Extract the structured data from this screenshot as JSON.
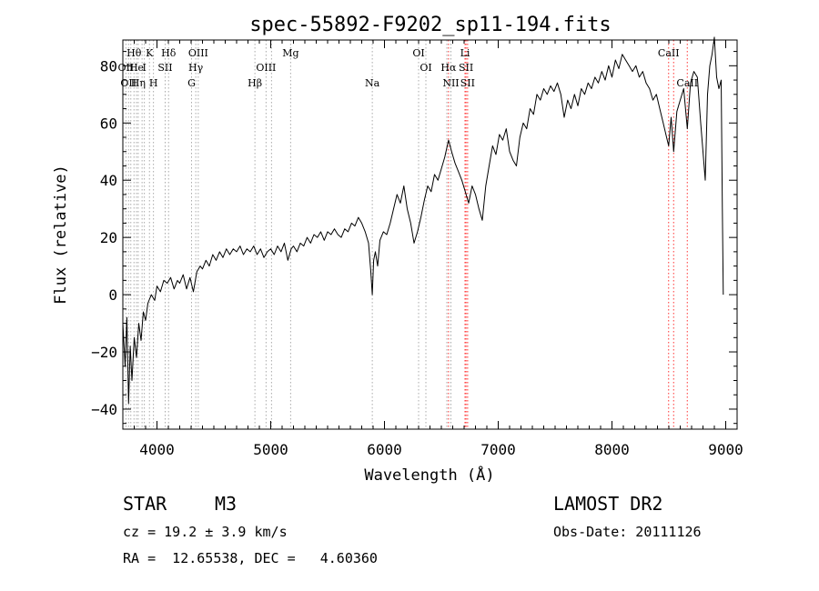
{
  "chart_data": {
    "type": "line",
    "title": "spec-55892-F9202_sp11-194.fits",
    "xlabel": "Wavelength (Å)",
    "ylabel": "Flux (relative)",
    "xlim": [
      3700,
      9100
    ],
    "ylim": [
      -47,
      89
    ],
    "x_ticks": [
      4000,
      5000,
      6000,
      7000,
      8000,
      9000
    ],
    "y_ticks": [
      -40,
      -20,
      0,
      20,
      40,
      60,
      80
    ],
    "series": [
      {
        "color": "#000000",
        "points": [
          [
            3700,
            -10
          ],
          [
            3720,
            -25
          ],
          [
            3735,
            -8
          ],
          [
            3750,
            -38
          ],
          [
            3765,
            -18
          ],
          [
            3780,
            -30
          ],
          [
            3800,
            -15
          ],
          [
            3820,
            -22
          ],
          [
            3840,
            -10
          ],
          [
            3860,
            -16
          ],
          [
            3880,
            -6
          ],
          [
            3900,
            -9
          ],
          [
            3920,
            -3
          ],
          [
            3950,
            0
          ],
          [
            3980,
            -2
          ],
          [
            4000,
            3
          ],
          [
            4030,
            1
          ],
          [
            4060,
            5
          ],
          [
            4090,
            4
          ],
          [
            4120,
            6
          ],
          [
            4150,
            2
          ],
          [
            4180,
            5
          ],
          [
            4200,
            4
          ],
          [
            4230,
            7
          ],
          [
            4260,
            2
          ],
          [
            4290,
            6
          ],
          [
            4320,
            1
          ],
          [
            4350,
            8
          ],
          [
            4380,
            10
          ],
          [
            4400,
            9
          ],
          [
            4430,
            12
          ],
          [
            4460,
            10
          ],
          [
            4490,
            14
          ],
          [
            4520,
            12
          ],
          [
            4550,
            15
          ],
          [
            4580,
            13
          ],
          [
            4610,
            16
          ],
          [
            4640,
            14
          ],
          [
            4670,
            16
          ],
          [
            4700,
            15
          ],
          [
            4730,
            17
          ],
          [
            4760,
            14
          ],
          [
            4790,
            16
          ],
          [
            4820,
            15
          ],
          [
            4850,
            17
          ],
          [
            4880,
            14
          ],
          [
            4910,
            16
          ],
          [
            4940,
            13
          ],
          [
            4970,
            15
          ],
          [
            5000,
            16
          ],
          [
            5030,
            14
          ],
          [
            5060,
            17
          ],
          [
            5090,
            15
          ],
          [
            5120,
            18
          ],
          [
            5150,
            12
          ],
          [
            5180,
            16
          ],
          [
            5200,
            17
          ],
          [
            5230,
            15
          ],
          [
            5260,
            18
          ],
          [
            5290,
            17
          ],
          [
            5320,
            20
          ],
          [
            5350,
            18
          ],
          [
            5380,
            21
          ],
          [
            5410,
            20
          ],
          [
            5440,
            22
          ],
          [
            5470,
            19
          ],
          [
            5500,
            22
          ],
          [
            5530,
            21
          ],
          [
            5560,
            23
          ],
          [
            5590,
            21
          ],
          [
            5620,
            20
          ],
          [
            5650,
            23
          ],
          [
            5680,
            22
          ],
          [
            5710,
            25
          ],
          [
            5740,
            24
          ],
          [
            5770,
            27
          ],
          [
            5800,
            25
          ],
          [
            5830,
            22
          ],
          [
            5860,
            18
          ],
          [
            5880,
            8
          ],
          [
            5893,
            0
          ],
          [
            5905,
            12
          ],
          [
            5920,
            15
          ],
          [
            5940,
            10
          ],
          [
            5960,
            19
          ],
          [
            5990,
            22
          ],
          [
            6020,
            21
          ],
          [
            6050,
            25
          ],
          [
            6080,
            30
          ],
          [
            6110,
            35
          ],
          [
            6140,
            32
          ],
          [
            6170,
            38
          ],
          [
            6200,
            30
          ],
          [
            6230,
            25
          ],
          [
            6260,
            18
          ],
          [
            6290,
            22
          ],
          [
            6320,
            27
          ],
          [
            6350,
            33
          ],
          [
            6380,
            38
          ],
          [
            6410,
            36
          ],
          [
            6440,
            42
          ],
          [
            6470,
            40
          ],
          [
            6500,
            44
          ],
          [
            6530,
            48
          ],
          [
            6563,
            54
          ],
          [
            6590,
            50
          ],
          [
            6620,
            46
          ],
          [
            6650,
            43
          ],
          [
            6680,
            40
          ],
          [
            6710,
            36
          ],
          [
            6740,
            32
          ],
          [
            6770,
            38
          ],
          [
            6800,
            35
          ],
          [
            6830,
            30
          ],
          [
            6860,
            26
          ],
          [
            6890,
            38
          ],
          [
            6920,
            45
          ],
          [
            6950,
            52
          ],
          [
            6980,
            49
          ],
          [
            7010,
            56
          ],
          [
            7040,
            54
          ],
          [
            7070,
            58
          ],
          [
            7100,
            50
          ],
          [
            7130,
            47
          ],
          [
            7160,
            45
          ],
          [
            7190,
            55
          ],
          [
            7220,
            60
          ],
          [
            7250,
            58
          ],
          [
            7280,
            65
          ],
          [
            7310,
            63
          ],
          [
            7340,
            70
          ],
          [
            7370,
            68
          ],
          [
            7400,
            72
          ],
          [
            7430,
            70
          ],
          [
            7460,
            73
          ],
          [
            7490,
            71
          ],
          [
            7520,
            74
          ],
          [
            7550,
            70
          ],
          [
            7580,
            62
          ],
          [
            7610,
            68
          ],
          [
            7640,
            65
          ],
          [
            7670,
            70
          ],
          [
            7700,
            66
          ],
          [
            7730,
            72
          ],
          [
            7760,
            70
          ],
          [
            7790,
            74
          ],
          [
            7820,
            72
          ],
          [
            7850,
            76
          ],
          [
            7880,
            74
          ],
          [
            7910,
            78
          ],
          [
            7940,
            75
          ],
          [
            7970,
            80
          ],
          [
            8000,
            76
          ],
          [
            8030,
            82
          ],
          [
            8060,
            79
          ],
          [
            8090,
            84
          ],
          [
            8120,
            82
          ],
          [
            8150,
            80
          ],
          [
            8180,
            78
          ],
          [
            8210,
            80
          ],
          [
            8240,
            76
          ],
          [
            8270,
            78
          ],
          [
            8300,
            74
          ],
          [
            8330,
            72
          ],
          [
            8360,
            68
          ],
          [
            8390,
            70
          ],
          [
            8420,
            65
          ],
          [
            8450,
            60
          ],
          [
            8480,
            55
          ],
          [
            8498,
            52
          ],
          [
            8520,
            62
          ],
          [
            8542,
            50
          ],
          [
            8570,
            64
          ],
          [
            8600,
            68
          ],
          [
            8630,
            72
          ],
          [
            8662,
            58
          ],
          [
            8690,
            74
          ],
          [
            8720,
            78
          ],
          [
            8750,
            76
          ],
          [
            8780,
            60
          ],
          [
            8800,
            50
          ],
          [
            8820,
            40
          ],
          [
            8840,
            70
          ],
          [
            8860,
            80
          ],
          [
            8880,
            84
          ],
          [
            8900,
            90
          ],
          [
            8920,
            76
          ],
          [
            8940,
            72
          ],
          [
            8960,
            75
          ],
          [
            8970,
            30
          ],
          [
            8978,
            0
          ]
        ]
      }
    ],
    "lines": {
      "gray_color": "#aaaaaa",
      "red_color": "#ff3333",
      "gray_positions": [
        3727,
        3750,
        3770,
        3798,
        3820,
        3835,
        3869,
        3889,
        3934,
        3969,
        4072,
        4102,
        4304,
        4341,
        4363,
        4861,
        4959,
        5007,
        5175,
        5893,
        6300,
        6364,
        6548,
        6584
      ],
      "red_positions": [
        6563,
        6708,
        6717,
        6731,
        8498,
        8542,
        8662
      ]
    },
    "labels": [
      {
        "text": "Hθ",
        "x": 3798,
        "row": 0
      },
      {
        "text": "K",
        "x": 3934,
        "row": 0
      },
      {
        "text": "Hδ",
        "x": 4102,
        "row": 0
      },
      {
        "text": "OIII",
        "x": 4363,
        "row": 0
      },
      {
        "text": "Mg",
        "x": 5175,
        "row": 0
      },
      {
        "text": "OI",
        "x": 6300,
        "row": 0
      },
      {
        "text": "Li",
        "x": 6708,
        "row": 0
      },
      {
        "text": "CaII",
        "x": 8498,
        "row": 0
      },
      {
        "text": "OII",
        "x": 3727,
        "row": 1
      },
      {
        "text": "He",
        "x": 3820,
        "row": 1
      },
      {
        "text": "I",
        "x": 3889,
        "row": 1
      },
      {
        "text": "SII",
        "x": 4072,
        "row": 1
      },
      {
        "text": "Hγ",
        "x": 4341,
        "row": 1
      },
      {
        "text": "OIII",
        "x": 4959,
        "row": 1
      },
      {
        "text": "OI",
        "x": 6364,
        "row": 1
      },
      {
        "text": "Hα",
        "x": 6563,
        "row": 1
      },
      {
        "text": "SII",
        "x": 6717,
        "row": 1
      },
      {
        "text": "OII",
        "x": 3750,
        "row": 2
      },
      {
        "text": "Hη",
        "x": 3835,
        "row": 2
      },
      {
        "text": "H",
        "x": 3969,
        "row": 2
      },
      {
        "text": "G",
        "x": 4304,
        "row": 2
      },
      {
        "text": "Hβ",
        "x": 4861,
        "row": 2
      },
      {
        "text": "Na",
        "x": 5893,
        "row": 2
      },
      {
        "text": "NII",
        "x": 6584,
        "row": 2
      },
      {
        "text": "SII",
        "x": 6731,
        "row": 2
      },
      {
        "text": "CaII",
        "x": 8662,
        "row": 2
      }
    ]
  },
  "info": {
    "object_class": "STAR",
    "subclass": "M3",
    "survey": "LAMOST DR2",
    "redshift": "cz = 19.2 ± 3.9 km/s",
    "obs_date": "Obs-Date: 20111126",
    "coords": "RA =  12.65538, DEC =   4.60360"
  }
}
